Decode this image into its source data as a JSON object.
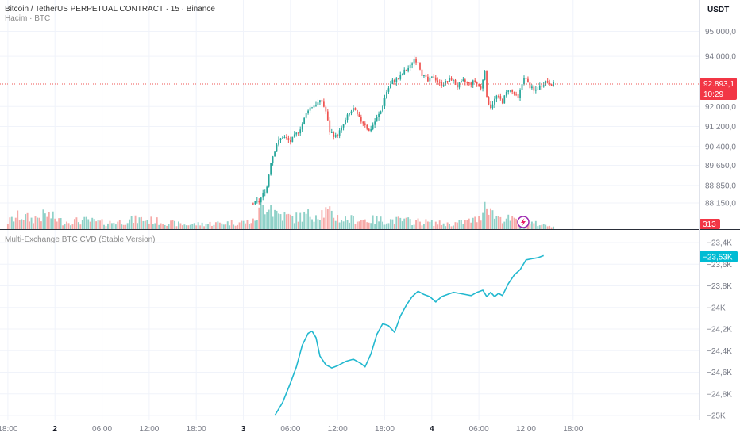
{
  "header": {
    "title": "Bitcoin / TetherUS PERPETUAL CONTRACT · 15 · Binance",
    "subtitle": "Hacim · BTC",
    "currency": "USDT"
  },
  "pane2": {
    "title": "Multi-Exchange BTC CVD (Stable Version)"
  },
  "badges": {
    "price": "92.893,1",
    "countdown": "10:29",
    "volume": "313",
    "cvd": "−23,53K"
  },
  "colors": {
    "up": "#26a69a",
    "down": "#ef5350",
    "up_volume": "#8fd1c8",
    "down_volume": "#f6a9a7",
    "cvd_line": "#22b8cf",
    "grid": "#f0f3fa",
    "axis_text": "#787b86"
  },
  "chart_data": [
    {
      "type": "candlestick",
      "ylim": [
        87800,
        95300
      ],
      "y_ticks": [
        {
          "value": 95000,
          "label": "95.000,0"
        },
        {
          "value": 94000,
          "label": "94.000,0"
        },
        {
          "value": 92000,
          "label": "92.000,0"
        },
        {
          "value": 91200,
          "label": "91.200,0"
        },
        {
          "value": 90400,
          "label": "90.400,0"
        },
        {
          "value": 89650,
          "label": "89.650,0"
        },
        {
          "value": 88850,
          "label": "88.850,0"
        },
        {
          "value": 88150,
          "label": "88.150,0"
        }
      ],
      "last_price": 92893.1,
      "price_path": [
        [
          0,
          88100
        ],
        [
          15,
          88050
        ],
        [
          40,
          88150
        ],
        [
          70,
          88050
        ],
        [
          100,
          88100
        ],
        [
          120,
          88000
        ],
        [
          128,
          88200
        ],
        [
          132,
          88800
        ],
        [
          134,
          89800
        ],
        [
          137,
          90500
        ],
        [
          140,
          90800
        ],
        [
          144,
          90600
        ],
        [
          148,
          91000
        ],
        [
          150,
          91300
        ],
        [
          153,
          91900
        ],
        [
          157,
          92100
        ],
        [
          160,
          92200
        ],
        [
          162,
          91800
        ],
        [
          164,
          91000
        ],
        [
          167,
          90800
        ],
        [
          170,
          91100
        ],
        [
          173,
          91600
        ],
        [
          176,
          91900
        ],
        [
          179,
          91500
        ],
        [
          182,
          91300
        ],
        [
          184,
          91000
        ],
        [
          187,
          91400
        ],
        [
          190,
          91800
        ],
        [
          193,
          92600
        ],
        [
          196,
          93000
        ],
        [
          199,
          93100
        ],
        [
          202,
          93400
        ],
        [
          205,
          93600
        ],
        [
          207,
          93900
        ],
        [
          209,
          93800
        ],
        [
          211,
          93300
        ],
        [
          214,
          93000
        ],
        [
          217,
          93200
        ],
        [
          220,
          92900
        ],
        [
          223,
          92950
        ],
        [
          226,
          93100
        ],
        [
          229,
          92800
        ],
        [
          232,
          93000
        ],
        [
          235,
          92900
        ],
        [
          238,
          93000
        ],
        [
          241,
          92700
        ],
        [
          243,
          93500
        ],
        [
          244,
          92300
        ],
        [
          246,
          92000
        ],
        [
          249,
          92400
        ],
        [
          252,
          92200
        ],
        [
          255,
          92700
        ],
        [
          258,
          92500
        ],
        [
          260,
          92300
        ],
        [
          263,
          93200
        ],
        [
          265,
          92900
        ],
        [
          268,
          92600
        ],
        [
          271,
          92800
        ],
        [
          274,
          93000
        ],
        [
          278,
          92893
        ]
      ]
    },
    {
      "type": "bar",
      "name": "Hacim · BTC",
      "volume_peaks": [
        [
          0,
          0.3
        ],
        [
          6,
          0.55
        ],
        [
          12,
          0.4
        ],
        [
          20,
          0.58
        ],
        [
          28,
          0.3
        ],
        [
          40,
          0.35
        ],
        [
          50,
          0.25
        ],
        [
          68,
          0.4
        ],
        [
          90,
          0.18
        ],
        [
          110,
          0.25
        ],
        [
          125,
          0.3
        ],
        [
          130,
          0.9
        ],
        [
          133,
          1.2
        ],
        [
          135,
          0.75
        ],
        [
          140,
          0.55
        ],
        [
          146,
          0.45
        ],
        [
          155,
          0.6
        ],
        [
          162,
          0.7
        ],
        [
          170,
          0.4
        ],
        [
          200,
          0.35
        ],
        [
          214,
          0.28
        ],
        [
          225,
          0.2
        ],
        [
          240,
          0.4
        ],
        [
          244,
          1.3
        ],
        [
          247,
          0.6
        ],
        [
          252,
          0.45
        ],
        [
          262,
          0.3
        ],
        [
          275,
          0.15
        ]
      ],
      "last_value": 313
    },
    {
      "type": "line",
      "name": "Multi-Exchange BTC CVD (Stable Version)",
      "ylim": [
        -25000,
        -23400
      ],
      "y_ticks": [
        {
          "value": -23400,
          "label": "−23,4K"
        },
        {
          "value": -23600,
          "label": "−23,6K"
        },
        {
          "value": -23800,
          "label": "−23,8K"
        },
        {
          "value": -24000,
          "label": "−24K"
        },
        {
          "value": -24200,
          "label": "−24,2K"
        },
        {
          "value": -24400,
          "label": "−24,4K"
        },
        {
          "value": -24600,
          "label": "−24,6K"
        },
        {
          "value": -24800,
          "label": "−24,8K"
        },
        {
          "value": -25000,
          "label": "−25K"
        }
      ],
      "last_value": -23530,
      "path": [
        [
          136,
          -25000
        ],
        [
          140,
          -24880
        ],
        [
          144,
          -24700
        ],
        [
          147,
          -24550
        ],
        [
          150,
          -24350
        ],
        [
          153,
          -24240
        ],
        [
          155,
          -24220
        ],
        [
          157,
          -24280
        ],
        [
          159,
          -24450
        ],
        [
          162,
          -24530
        ],
        [
          165,
          -24560
        ],
        [
          168,
          -24540
        ],
        [
          172,
          -24500
        ],
        [
          176,
          -24480
        ],
        [
          180,
          -24520
        ],
        [
          182,
          -24550
        ],
        [
          185,
          -24430
        ],
        [
          188,
          -24250
        ],
        [
          191,
          -24150
        ],
        [
          194,
          -24170
        ],
        [
          197,
          -24230
        ],
        [
          200,
          -24080
        ],
        [
          203,
          -23980
        ],
        [
          206,
          -23900
        ],
        [
          209,
          -23850
        ],
        [
          212,
          -23880
        ],
        [
          215,
          -23900
        ],
        [
          218,
          -23950
        ],
        [
          221,
          -23900
        ],
        [
          224,
          -23880
        ],
        [
          227,
          -23860
        ],
        [
          230,
          -23870
        ],
        [
          233,
          -23880
        ],
        [
          236,
          -23890
        ],
        [
          239,
          -23860
        ],
        [
          242,
          -23840
        ],
        [
          244,
          -23900
        ],
        [
          246,
          -23860
        ],
        [
          248,
          -23900
        ],
        [
          250,
          -23870
        ],
        [
          252,
          -23890
        ],
        [
          255,
          -23780
        ],
        [
          258,
          -23700
        ],
        [
          261,
          -23650
        ],
        [
          264,
          -23560
        ],
        [
          267,
          -23550
        ],
        [
          270,
          -23540
        ],
        [
          273,
          -23520
        ]
      ]
    }
  ],
  "time_axis": {
    "xlim": [
      -4,
      352
    ],
    "ticks": [
      {
        "index": 0,
        "label": "18:00",
        "bold": false
      },
      {
        "index": 24,
        "label": "2",
        "bold": true
      },
      {
        "index": 48,
        "label": "06:00",
        "bold": false
      },
      {
        "index": 72,
        "label": "12:00",
        "bold": false
      },
      {
        "index": 96,
        "label": "18:00",
        "bold": false
      },
      {
        "index": 120,
        "label": "3",
        "bold": true
      },
      {
        "index": 144,
        "label": "06:00",
        "bold": false
      },
      {
        "index": 168,
        "label": "12:00",
        "bold": false
      },
      {
        "index": 192,
        "label": "18:00",
        "bold": false
      },
      {
        "index": 216,
        "label": "4",
        "bold": true
      },
      {
        "index": 240,
        "label": "06:00",
        "bold": false
      },
      {
        "index": 264,
        "label": "12:00",
        "bold": false
      },
      {
        "index": 288,
        "label": "18:00",
        "bold": false
      }
    ]
  }
}
